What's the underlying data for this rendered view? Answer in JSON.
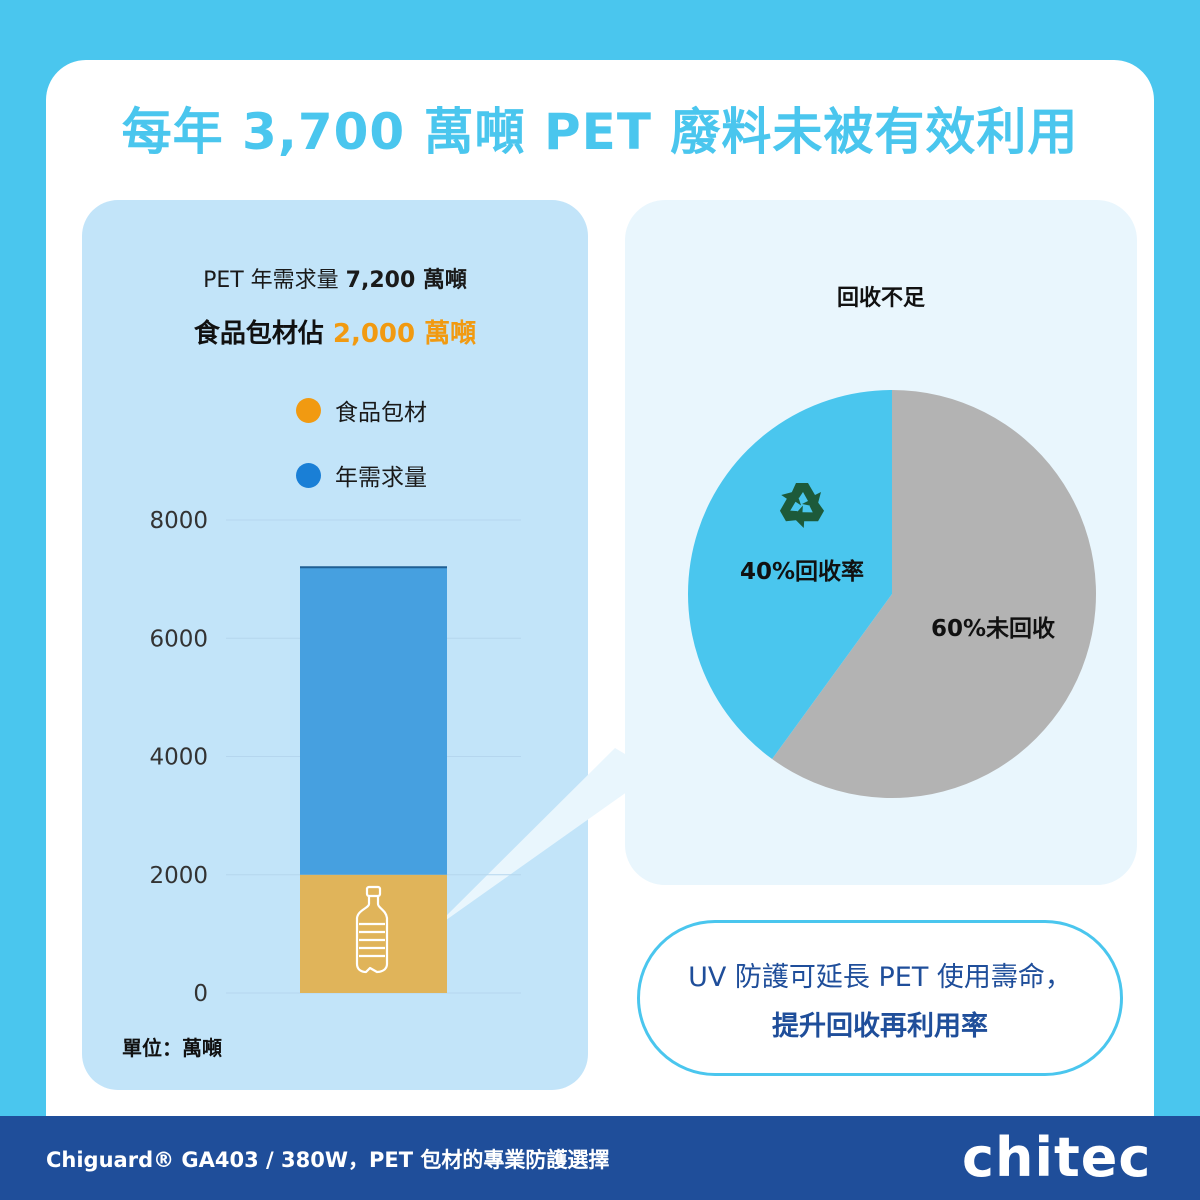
{
  "headline": "每年 3,700 萬噸 PET 廢料未被有效利用",
  "bar_panel": {
    "title_prefix": "PET 年需求量 ",
    "title_value": "7,200 萬噸",
    "subtitle_prefix": "食品包材佔 ",
    "subtitle_value": "2,000 萬噸",
    "unit_label": "單位：萬噸",
    "bottle_icon": "plastic-bottle-icon"
  },
  "pie_panel": {
    "title": "回收不足",
    "recycle_icon": "recycle-icon"
  },
  "callout": {
    "line1": "UV 防護可延長 PET 使用壽命，",
    "line2": "提升回收再利用率"
  },
  "footer": {
    "text": "Chiguard® GA403 / 380W，PET 包材的專業防護選擇",
    "logo": "chitec"
  },
  "colors": {
    "accent": "#4ac6ee",
    "food": "#e0b45a",
    "annual": "#46a0e0",
    "food_legend": "#f19a11",
    "annual_legend": "#1a7fd6",
    "unrecycled": "#b3b3b3",
    "recycled": "#4ac6ee",
    "footer": "#1f4e9a"
  },
  "chart_data": [
    {
      "type": "bar",
      "stacked": true,
      "categories": [
        ""
      ],
      "series": [
        {
          "name": "食品包材",
          "values": [
            2000
          ]
        },
        {
          "name": "年需求量",
          "values": [
            5200
          ]
        }
      ],
      "total": 7200,
      "ylim": [
        0,
        8000
      ],
      "yticks": [
        "0",
        "2000",
        "4000",
        "6000",
        "8000"
      ],
      "grid": true,
      "legend": "top"
    },
    {
      "type": "pie",
      "slices": [
        {
          "label": "60%未回收",
          "value": 60
        },
        {
          "label": "40%回收率",
          "value": 40
        }
      ],
      "legend": "none"
    }
  ]
}
